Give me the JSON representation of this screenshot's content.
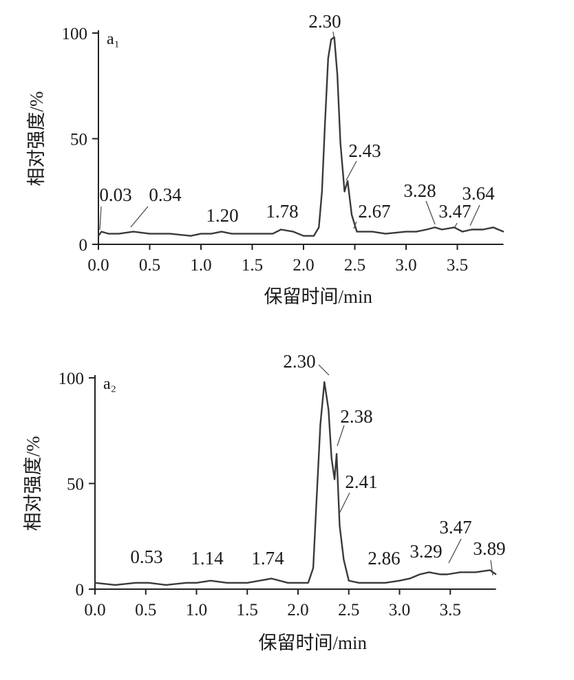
{
  "chart_data": [
    {
      "type": "line",
      "panel_label": "a₁",
      "xlabel": "保留时间/min",
      "ylabel": "相对强度/%",
      "xlim": [
        0.0,
        3.95
      ],
      "ylim": [
        0,
        100
      ],
      "xticks": [
        "0.0",
        "0.5",
        "1.0",
        "1.5",
        "2.0",
        "2.5",
        "3.0",
        "3.5"
      ],
      "yticks": [
        "0",
        "50",
        "100"
      ],
      "series": [
        {
          "x": [
            0.0,
            0.03,
            0.1,
            0.2,
            0.34,
            0.5,
            0.7,
            0.9,
            1.0,
            1.1,
            1.2,
            1.3,
            1.5,
            1.7,
            1.78,
            1.9,
            2.0,
            2.1,
            2.15,
            2.18,
            2.21,
            2.24,
            2.27,
            2.3,
            2.33,
            2.36,
            2.4,
            2.43,
            2.47,
            2.52,
            2.6,
            2.67,
            2.8,
            3.0,
            3.1,
            3.2,
            3.28,
            3.35,
            3.47,
            3.55,
            3.64,
            3.75,
            3.85,
            3.95
          ],
          "y": [
            4,
            6,
            5,
            5,
            6,
            5,
            5,
            4,
            5,
            5,
            6,
            5,
            5,
            5,
            7,
            6,
            4,
            4,
            8,
            25,
            58,
            88,
            97,
            98,
            80,
            48,
            25,
            30,
            14,
            6,
            6,
            6,
            5,
            6,
            6,
            7,
            8,
            7,
            8,
            6,
            7,
            7,
            8,
            6
          ]
        }
      ],
      "peak_labels": [
        {
          "text": "0.03",
          "x": 0.03
        },
        {
          "text": "0.34",
          "x": 0.34
        },
        {
          "text": "1.20",
          "x": 1.2
        },
        {
          "text": "1.78",
          "x": 1.78
        },
        {
          "text": "2.30",
          "x": 2.3
        },
        {
          "text": "2.43",
          "x": 2.43
        },
        {
          "text": "2.67",
          "x": 2.67
        },
        {
          "text": "3.28",
          "x": 3.28
        },
        {
          "text": "3.47",
          "x": 3.47
        },
        {
          "text": "3.64",
          "x": 3.64
        }
      ]
    },
    {
      "type": "line",
      "panel_label": "a₂",
      "xlabel": "保留时间/min",
      "ylabel": "相对强度/%",
      "xlim": [
        0.0,
        3.95
      ],
      "ylim": [
        0,
        100
      ],
      "xticks": [
        "0.0",
        "0.5",
        "1.0",
        "1.5",
        "2.0",
        "2.5",
        "3.0",
        "3.5"
      ],
      "yticks": [
        "0",
        "50",
        "100"
      ],
      "series": [
        {
          "x": [
            0.0,
            0.2,
            0.4,
            0.53,
            0.7,
            0.9,
            1.0,
            1.14,
            1.3,
            1.5,
            1.74,
            1.9,
            2.0,
            2.1,
            2.15,
            2.18,
            2.22,
            2.26,
            2.3,
            2.33,
            2.36,
            2.38,
            2.41,
            2.45,
            2.5,
            2.6,
            2.8,
            2.86,
            3.0,
            3.1,
            3.2,
            3.29,
            3.4,
            3.47,
            3.6,
            3.75,
            3.89,
            3.95
          ],
          "y": [
            3,
            2,
            3,
            3,
            2,
            3,
            3,
            4,
            3,
            3,
            5,
            3,
            3,
            3,
            10,
            40,
            78,
            98,
            85,
            62,
            52,
            64,
            30,
            14,
            4,
            3,
            3,
            3,
            4,
            5,
            7,
            8,
            7,
            7,
            8,
            8,
            9,
            7
          ]
        }
      ],
      "peak_labels": [
        {
          "text": "0.53",
          "x": 0.53
        },
        {
          "text": "1.14",
          "x": 1.14
        },
        {
          "text": "1.74",
          "x": 1.74
        },
        {
          "text": "2.30",
          "x": 2.3
        },
        {
          "text": "2.38",
          "x": 2.38
        },
        {
          "text": "2.41",
          "x": 2.41
        },
        {
          "text": "2.86",
          "x": 2.86
        },
        {
          "text": "3.29",
          "x": 3.29
        },
        {
          "text": "3.47",
          "x": 3.47
        },
        {
          "text": "3.89",
          "x": 3.89
        }
      ]
    }
  ]
}
